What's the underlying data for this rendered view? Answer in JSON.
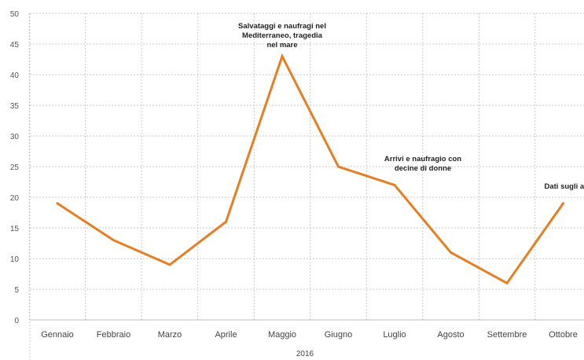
{
  "chart_data": {
    "type": "line",
    "title": "",
    "xlabel": "2016",
    "ylabel": "",
    "categories": [
      "Gennaio",
      "Febbraio",
      "Marzo",
      "Aprile",
      "Maggio",
      "Giugno",
      "Luglio",
      "Agosto",
      "Settembre",
      "Ottobre"
    ],
    "series": [
      {
        "values": [
          19,
          13,
          9,
          16,
          43,
          25,
          22,
          11,
          6,
          19
        ]
      }
    ],
    "ylim": [
      0,
      50
    ],
    "yticks": [
      0,
      5,
      10,
      15,
      20,
      25,
      30,
      35,
      40,
      45,
      50
    ],
    "grid": true,
    "legend": "none",
    "colors": {
      "line": "#E67E22",
      "grid": "#c9c9c9",
      "axis": "#bdbdbd"
    },
    "annotations": [
      {
        "category": "Maggio",
        "lines": [
          "Salvataggi e naufragi nel",
          "Mediterraneo, tragedia",
          "nel mare"
        ]
      },
      {
        "category": "Luglio",
        "lines": [
          "Arrivi e naufragio con",
          "decine di donne"
        ]
      },
      {
        "category": "Ottobre",
        "lines": [
          "Dati sugli arrivi in Italia"
        ]
      }
    ]
  }
}
